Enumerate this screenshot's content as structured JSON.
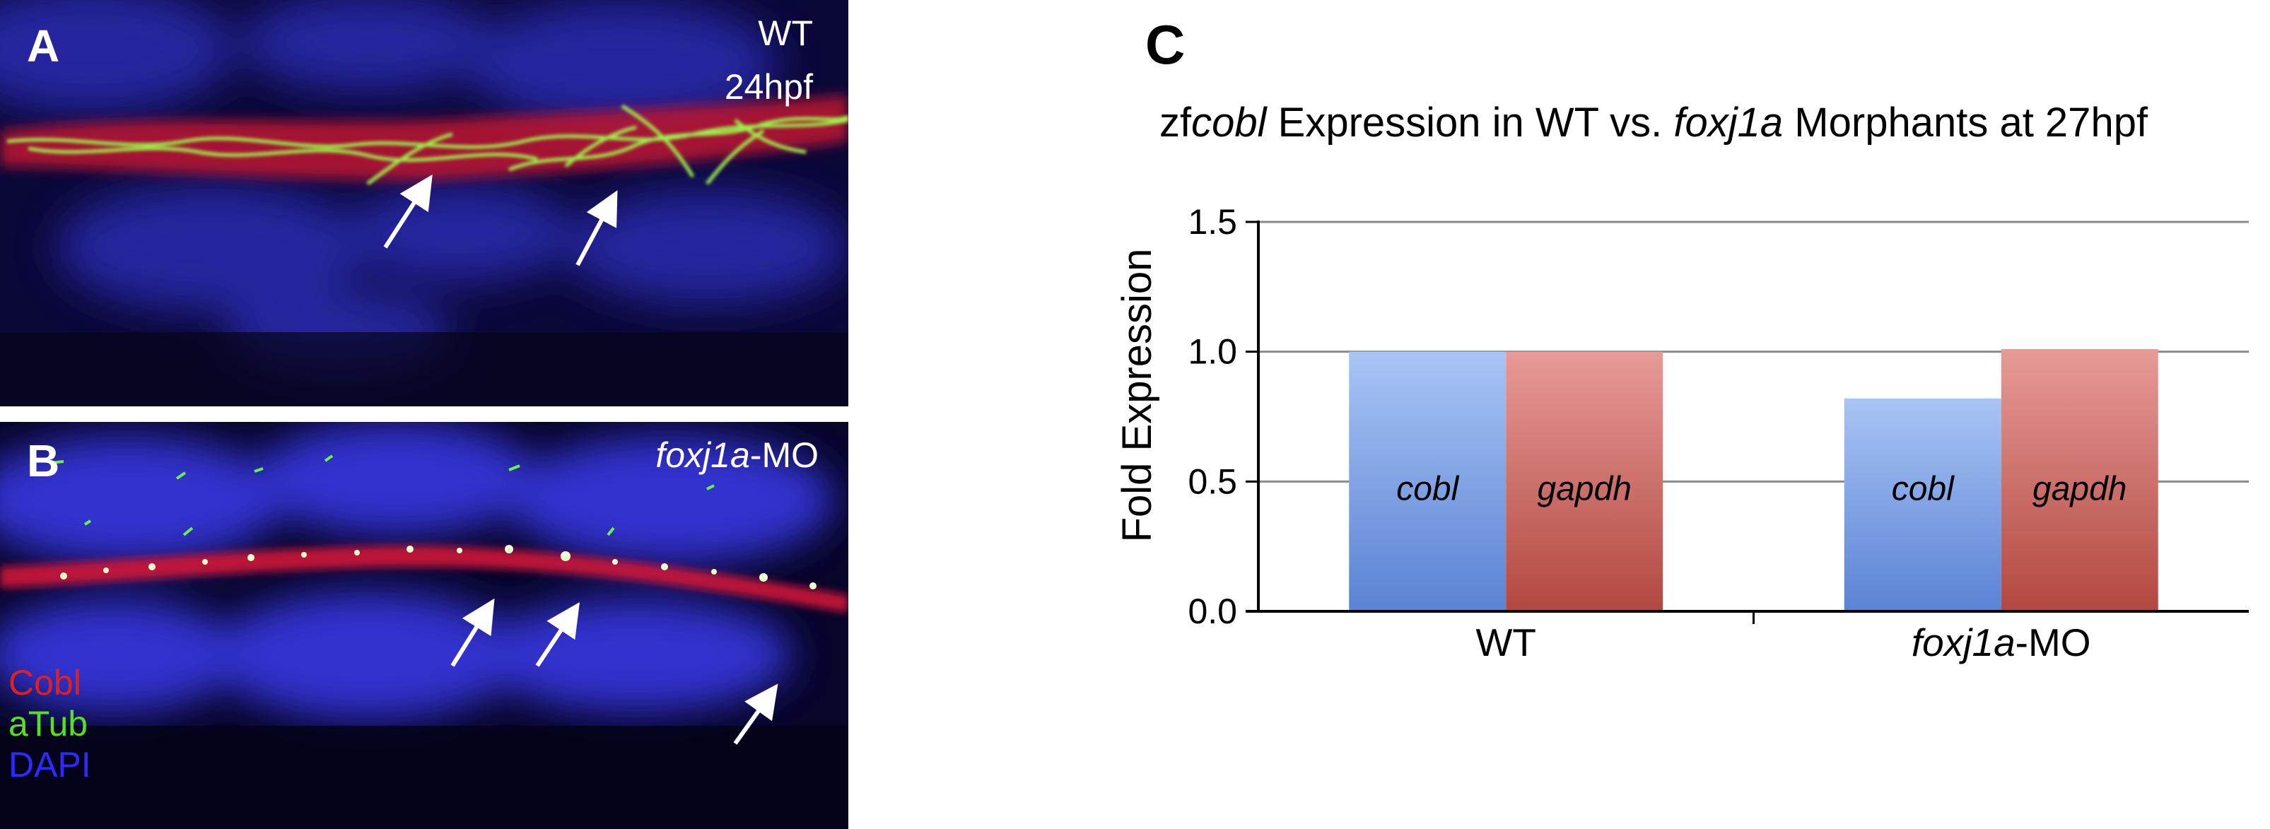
{
  "panel_a": {
    "letter": "A",
    "overlay_line1": "WT",
    "overlay_line2": "24hpf"
  },
  "panel_b": {
    "letter": "B",
    "overlay_italic": "foxj1a",
    "overlay_rest": "-MO",
    "channels": [
      {
        "name": "Cobl",
        "color": "#e02020"
      },
      {
        "name": "aTub",
        "color": "#55e020"
      },
      {
        "name": "DAPI",
        "color": "#2b2bff"
      }
    ]
  },
  "panel_c": {
    "letter": "C"
  },
  "chart_data": {
    "type": "bar",
    "title_parts": [
      {
        "text": "zf",
        "italic": false
      },
      {
        "text": "cobl",
        "italic": true
      },
      {
        "text": " Expression in WT vs. ",
        "italic": false
      },
      {
        "text": "foxj1a",
        "italic": true
      },
      {
        "text": " Morphants at 27hpf",
        "italic": false
      }
    ],
    "ylabel": "Fold Expression",
    "ylim": [
      0,
      1.5
    ],
    "yticks": [
      "0.0",
      "0.5",
      "1.0",
      "1.5"
    ],
    "grid": true,
    "categories": [
      {
        "italic": "",
        "rest": "WT"
      },
      {
        "italic": "foxj1a",
        "rest": "-MO"
      }
    ],
    "series": [
      {
        "label": "cobl",
        "values": [
          1.0,
          0.82
        ],
        "color_top": "#a9c4f5",
        "color_bottom": "#5a83d4"
      },
      {
        "label": "gapdh",
        "values": [
          1.0,
          1.01
        ],
        "color_top": "#e79a98",
        "color_bottom": "#b24840"
      }
    ]
  }
}
